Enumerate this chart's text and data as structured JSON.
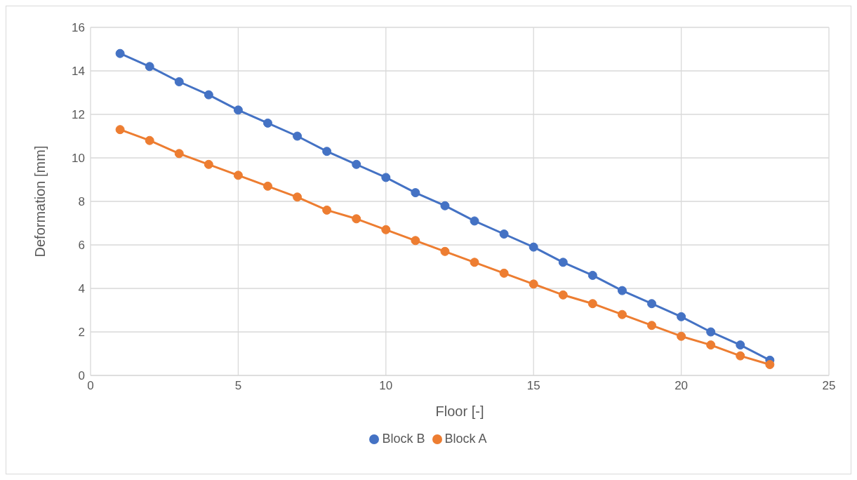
{
  "chart_data": {
    "type": "line",
    "xlabel": "Floor [-]",
    "ylabel": "Deformation [mm]",
    "x": [
      1,
      2,
      3,
      4,
      5,
      6,
      7,
      8,
      9,
      10,
      11,
      12,
      13,
      14,
      15,
      16,
      17,
      18,
      19,
      20,
      21,
      22,
      23
    ],
    "series": [
      {
        "name": "Block B",
        "color": "#4472c4",
        "values": [
          14.8,
          14.2,
          13.5,
          12.9,
          12.2,
          11.6,
          11.0,
          10.3,
          9.7,
          9.1,
          8.4,
          7.8,
          7.1,
          6.5,
          5.9,
          5.2,
          4.6,
          3.9,
          3.3,
          2.7,
          2.0,
          1.4,
          0.7
        ]
      },
      {
        "name": "Block A",
        "color": "#ed7d31",
        "values": [
          11.3,
          10.8,
          10.2,
          9.7,
          9.2,
          8.7,
          8.2,
          7.6,
          7.2,
          6.7,
          6.2,
          5.7,
          5.2,
          4.7,
          4.2,
          3.7,
          3.3,
          2.8,
          2.3,
          1.8,
          1.4,
          0.9,
          0.5
        ]
      }
    ],
    "xlim": [
      0,
      25
    ],
    "xticks": [
      0,
      5,
      10,
      15,
      20,
      25
    ],
    "ylim": [
      0,
      16
    ],
    "yticks": [
      0,
      2,
      4,
      6,
      8,
      10,
      12,
      14,
      16
    ],
    "grid": true,
    "legend": "bottom",
    "marker": "circle",
    "line_style": "solid"
  }
}
